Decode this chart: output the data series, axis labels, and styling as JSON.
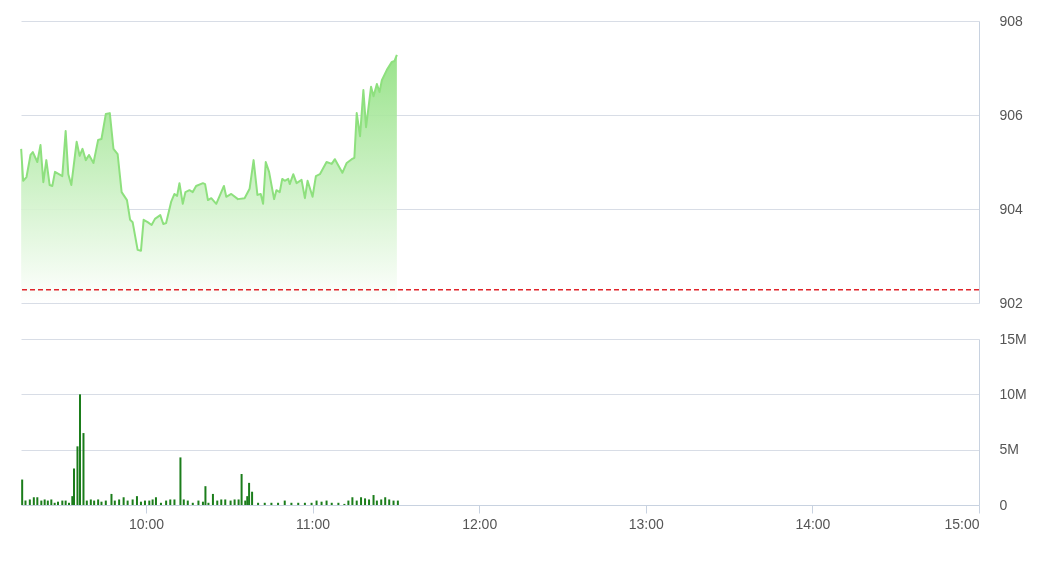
{
  "chart_data": [
    {
      "type": "area",
      "color": "#8ee07e",
      "xlim": [
        9.25,
        15
      ],
      "ylim": [
        902,
        908
      ],
      "yticks": [
        902,
        904,
        906,
        908
      ],
      "grid": "y",
      "tick_labels": "y",
      "x": [
        9.251,
        9.263,
        9.283,
        9.307,
        9.321,
        9.348,
        9.367,
        9.384,
        9.402,
        9.422,
        9.438,
        9.454,
        9.498,
        9.518,
        9.534,
        9.552,
        9.584,
        9.602,
        9.619,
        9.639,
        9.658,
        9.685,
        9.713,
        9.733,
        9.759,
        9.783,
        9.805,
        9.83,
        9.854,
        9.886,
        9.905,
        9.92,
        9.95,
        9.97,
        9.986,
        10.01,
        10.034,
        10.054,
        10.086,
        10.104,
        10.121,
        10.151,
        10.171,
        10.187,
        10.201,
        10.221,
        10.237,
        10.261,
        10.281,
        10.301,
        10.342,
        10.355,
        10.372,
        10.392,
        10.422,
        10.468,
        10.482,
        10.512,
        10.552,
        10.592,
        10.622,
        10.646,
        10.669,
        10.689,
        10.703,
        10.719,
        10.739,
        10.769,
        10.783,
        10.803,
        10.818,
        10.833,
        10.854,
        10.863,
        10.884,
        10.904,
        10.934,
        10.954,
        10.97,
        11.0,
        11.02,
        11.044,
        11.084,
        11.115,
        11.134,
        11.179,
        11.205,
        11.235,
        11.251,
        11.265,
        11.285,
        11.305,
        11.321,
        11.351,
        11.366,
        11.386,
        11.402,
        11.416,
        11.446,
        11.476,
        11.492,
        11.506
      ],
      "values": [
        905.28,
        904.6,
        904.68,
        905.15,
        905.21,
        905.0,
        905.36,
        904.57,
        905.04,
        904.51,
        904.49,
        904.79,
        904.7,
        905.66,
        904.74,
        904.51,
        905.43,
        905.13,
        905.28,
        905.04,
        905.15,
        904.98,
        905.47,
        905.49,
        906.02,
        906.04,
        905.28,
        905.17,
        904.36,
        904.19,
        903.77,
        903.72,
        903.13,
        903.11,
        903.77,
        903.72,
        903.66,
        903.79,
        903.87,
        903.68,
        903.7,
        904.15,
        904.32,
        904.28,
        904.55,
        904.11,
        904.36,
        904.4,
        904.36,
        904.49,
        904.55,
        904.53,
        904.19,
        904.23,
        904.11,
        904.49,
        904.26,
        904.32,
        904.21,
        904.23,
        904.43,
        905.04,
        904.3,
        904.32,
        904.11,
        905.0,
        904.79,
        904.21,
        904.4,
        904.36,
        904.64,
        904.6,
        904.64,
        904.53,
        904.74,
        904.55,
        904.62,
        904.23,
        904.6,
        904.26,
        904.7,
        904.74,
        905.0,
        904.96,
        905.06,
        904.77,
        904.98,
        905.06,
        905.09,
        906.04,
        905.55,
        906.53,
        905.74,
        906.6,
        906.4,
        906.66,
        906.49,
        906.74,
        906.96,
        907.13,
        907.15,
        907.28
      ],
      "ref_lines": [
        {
          "axis": "y",
          "value": 902.28,
          "color": "#e0252b",
          "line_style": "dashed"
        }
      ]
    },
    {
      "type": "bar",
      "color": "#1b7d1b",
      "xlim": [
        9.25,
        15
      ],
      "xticks": [
        {
          "value": 10,
          "label": "10:00"
        },
        {
          "value": 11,
          "label": "11:00"
        },
        {
          "value": 12,
          "label": "12:00"
        },
        {
          "value": 13,
          "label": "13:00"
        },
        {
          "value": 14,
          "label": "14:00"
        },
        {
          "value": 15,
          "label": "15:00"
        }
      ],
      "ylim": [
        0,
        15
      ],
      "yticks": [
        0,
        {
          "value": 5,
          "label": "5M"
        },
        {
          "value": 10,
          "label": "10M"
        },
        {
          "value": 15,
          "label": "15M"
        }
      ],
      "grid": "y",
      "x": [
        9.257,
        9.277,
        9.303,
        9.327,
        9.348,
        9.372,
        9.392,
        9.411,
        9.432,
        9.452,
        9.472,
        9.498,
        9.518,
        9.538,
        9.558,
        9.568,
        9.589,
        9.604,
        9.625,
        9.645,
        9.669,
        9.689,
        9.713,
        9.733,
        9.759,
        9.793,
        9.813,
        9.839,
        9.866,
        9.89,
        9.92,
        9.946,
        9.97,
        9.994,
        10.02,
        10.04,
        10.06,
        10.09,
        10.121,
        10.146,
        10.171,
        10.207,
        10.227,
        10.251,
        10.281,
        10.315,
        10.342,
        10.357,
        10.375,
        10.402,
        10.428,
        10.452,
        10.476,
        10.508,
        10.532,
        10.556,
        10.574,
        10.596,
        10.608,
        10.619,
        10.637,
        10.673,
        10.713,
        10.753,
        10.793,
        10.833,
        10.873,
        10.914,
        10.954,
        10.994,
        11.024,
        11.054,
        11.084,
        11.115,
        11.155,
        11.191,
        11.215,
        11.239,
        11.265,
        11.291,
        11.315,
        11.339,
        11.366,
        11.386,
        11.412,
        11.436,
        11.46,
        11.486,
        11.512
      ],
      "values": [
        2.3,
        0.4,
        0.5,
        0.7,
        0.7,
        0.4,
        0.5,
        0.4,
        0.5,
        0.2,
        0.3,
        0.4,
        0.4,
        0.2,
        0.8,
        3.3,
        5.3,
        10.0,
        6.5,
        0.4,
        0.5,
        0.4,
        0.5,
        0.3,
        0.4,
        1.0,
        0.4,
        0.5,
        0.7,
        0.4,
        0.5,
        0.8,
        0.3,
        0.4,
        0.4,
        0.5,
        0.7,
        0.2,
        0.4,
        0.5,
        0.5,
        4.3,
        0.5,
        0.4,
        0.2,
        0.4,
        0.3,
        1.7,
        0.2,
        1.0,
        0.4,
        0.5,
        0.5,
        0.4,
        0.5,
        0.5,
        2.8,
        0.4,
        0.8,
        2.0,
        1.2,
        0.2,
        0.2,
        0.2,
        0.2,
        0.4,
        0.2,
        0.2,
        0.2,
        0.2,
        0.4,
        0.3,
        0.4,
        0.2,
        0.2,
        0.1,
        0.4,
        0.7,
        0.4,
        0.7,
        0.6,
        0.5,
        0.9,
        0.4,
        0.5,
        0.7,
        0.5,
        0.4,
        0.4
      ]
    }
  ]
}
